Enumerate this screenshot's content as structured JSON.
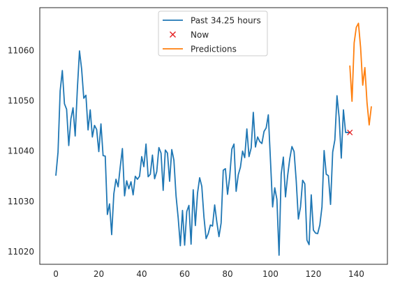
{
  "chart_data": {
    "type": "line",
    "title": "",
    "xlabel": "",
    "ylabel": "",
    "xlim": [
      -7.5,
      154.5
    ],
    "ylim": [
      11017.5,
      11068.5
    ],
    "xticks": [
      0,
      20,
      40,
      60,
      80,
      100,
      120,
      140
    ],
    "yticks": [
      11020,
      11030,
      11040,
      11050,
      11060
    ],
    "grid": false,
    "legend_position": "top-center",
    "series": [
      {
        "name": "Past 34.25 hours",
        "kind": "line",
        "color": "#1f77b4",
        "x": [
          0,
          1,
          2,
          3,
          4,
          5,
          6,
          7,
          8,
          9,
          10,
          11,
          12,
          13,
          14,
          15,
          16,
          17,
          18,
          19,
          20,
          21,
          22,
          23,
          24,
          25,
          26,
          27,
          28,
          29,
          30,
          31,
          32,
          33,
          34,
          35,
          36,
          37,
          38,
          39,
          40,
          41,
          42,
          43,
          44,
          45,
          46,
          47,
          48,
          49,
          50,
          51,
          52,
          53,
          54,
          55,
          56,
          57,
          58,
          59,
          60,
          61,
          62,
          63,
          64,
          65,
          66,
          67,
          68,
          69,
          70,
          71,
          72,
          73,
          74,
          75,
          76,
          77,
          78,
          79,
          80,
          81,
          82,
          83,
          84,
          85,
          86,
          87,
          88,
          89,
          90,
          91,
          92,
          93,
          94,
          95,
          96,
          97,
          98,
          99,
          100,
          101,
          102,
          103,
          104,
          105,
          106,
          107,
          108,
          109,
          110,
          111,
          112,
          113,
          114,
          115,
          116,
          117,
          118,
          119,
          120,
          121,
          122,
          123,
          124,
          125,
          126,
          127,
          128,
          129,
          130,
          131,
          132,
          133,
          134,
          135,
          136,
          137
        ],
        "y": [
          11035.2,
          11039.8,
          11052.0,
          11056.0,
          11049.4,
          11048.3,
          11041.1,
          11046.4,
          11048.6,
          11043.0,
          11052.3,
          11059.9,
          11056.3,
          11050.5,
          11051.1,
          11044.2,
          11048.2,
          11042.8,
          11045.1,
          11044.3,
          11039.9,
          11045.4,
          11039.1,
          11039.0,
          11027.4,
          11029.5,
          11023.4,
          11031.5,
          11034.4,
          11032.9,
          11036.9,
          11040.5,
          11031.1,
          11034.1,
          11032.5,
          11033.9,
          11031.3,
          11035.0,
          11034.4,
          11035.0,
          11038.9,
          11036.9,
          11041.4,
          11034.9,
          11035.4,
          11039.2,
          11034.5,
          11035.9,
          11040.7,
          11039.6,
          11032.2,
          11040.2,
          11039.6,
          11034.0,
          11040.3,
          11038.2,
          11031.1,
          11026.7,
          11021.2,
          11028.2,
          11021.3,
          11028.0,
          11029.2,
          11021.5,
          11032.3,
          11025.2,
          11031.6,
          11034.7,
          11033.0,
          11026.9,
          11022.6,
          11023.6,
          11025.3,
          11025.1,
          11029.3,
          11025.9,
          11023.0,
          11025.7,
          11036.2,
          11036.5,
          11031.4,
          11034.9,
          11040.4,
          11041.4,
          11032.0,
          11035.3,
          11036.8,
          11040.0,
          11038.7,
          11044.4,
          11038.9,
          11040.6,
          11047.7,
          11040.8,
          11042.8,
          11041.9,
          11041.5,
          11043.9,
          11044.6,
          11047.2,
          11038.2,
          11028.9,
          11032.7,
          11030.4,
          11019.3,
          11035.4,
          11038.8,
          11030.9,
          11035.1,
          11038.5,
          11040.9,
          11039.9,
          11034.1,
          11026.5,
          11028.9,
          11034.2,
          11033.5,
          11022.3,
          11021.4,
          11031.3,
          11024.3,
          11023.7,
          11023.6,
          11025.3,
          11028.9,
          11040.1,
          11035.4,
          11035.1,
          11029.4,
          11039.8,
          11042.2,
          11051.0,
          11046.7,
          11038.6,
          11048.2,
          11043.7,
          11043.7,
          11043.7
        ]
      },
      {
        "name": "Now",
        "kind": "marker",
        "color": "#e31a1c",
        "x": [
          137
        ],
        "y": [
          11043.7
        ]
      },
      {
        "name": "Predictions",
        "kind": "line",
        "color": "#ff7f0e",
        "x": [
          137,
          138,
          139,
          140,
          141,
          142,
          143,
          144,
          145,
          146,
          147
        ],
        "y": [
          11056.9,
          11049.9,
          11061.5,
          11064.6,
          11065.4,
          11060.6,
          11053.1,
          11056.6,
          11049.6,
          11045.2,
          11048.8
        ]
      }
    ]
  }
}
